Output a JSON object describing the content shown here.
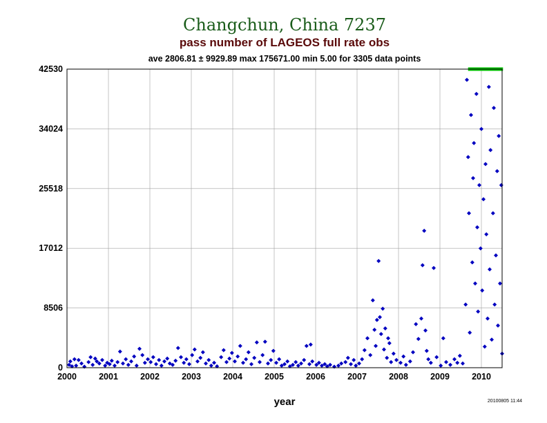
{
  "chart_data": {
    "type": "scatter",
    "title": "Changchun, China 7237",
    "subtitle": "pass number of LAGEOS full rate obs",
    "stats": "ave 2806.81 ± 9929.89 max 175671.00 min 5.00 for 3305 data points",
    "xlabel": "year",
    "ylabel": "",
    "stamp": "20100805 11:44",
    "xlim": [
      2000.0,
      2010.5
    ],
    "ylim": [
      0,
      42530
    ],
    "xticks": [
      2000,
      2001,
      2002,
      2003,
      2004,
      2005,
      2006,
      2007,
      2008,
      2009,
      2010
    ],
    "yticks": [
      0,
      8506,
      17012,
      25518,
      34024,
      42530
    ],
    "grid": true,
    "series": [
      {
        "color": "#0000c0",
        "marker": "diamond",
        "points": [
          [
            2000.05,
            400
          ],
          [
            2000.08,
            900
          ],
          [
            2000.12,
            200
          ],
          [
            2000.18,
            1200
          ],
          [
            2000.22,
            300
          ],
          [
            2000.28,
            1100
          ],
          [
            2000.35,
            600
          ],
          [
            2000.42,
            150
          ],
          [
            2000.52,
            800
          ],
          [
            2000.57,
            1500
          ],
          [
            2000.62,
            400
          ],
          [
            2000.68,
            1300
          ],
          [
            2000.72,
            900
          ],
          [
            2000.78,
            600
          ],
          [
            2000.85,
            1100
          ],
          [
            2000.92,
            300
          ],
          [
            2000.97,
            700
          ],
          [
            2001.03,
            500
          ],
          [
            2001.08,
            1000
          ],
          [
            2001.15,
            300
          ],
          [
            2001.22,
            800
          ],
          [
            2001.28,
            2300
          ],
          [
            2001.35,
            600
          ],
          [
            2001.42,
            1200
          ],
          [
            2001.48,
            400
          ],
          [
            2001.55,
            900
          ],
          [
            2001.62,
            1600
          ],
          [
            2001.68,
            300
          ],
          [
            2001.75,
            2700
          ],
          [
            2001.82,
            1800
          ],
          [
            2001.88,
            700
          ],
          [
            2001.95,
            1200
          ],
          [
            2002.02,
            800
          ],
          [
            2002.08,
            1500
          ],
          [
            2002.15,
            500
          ],
          [
            2002.22,
            1100
          ],
          [
            2002.28,
            300
          ],
          [
            2002.35,
            900
          ],
          [
            2002.42,
            1300
          ],
          [
            2002.48,
            600
          ],
          [
            2002.55,
            400
          ],
          [
            2002.62,
            1000
          ],
          [
            2002.68,
            2800
          ],
          [
            2002.75,
            1500
          ],
          [
            2002.82,
            700
          ],
          [
            2002.88,
            1200
          ],
          [
            2002.95,
            500
          ],
          [
            2003.02,
            1800
          ],
          [
            2003.08,
            2600
          ],
          [
            2003.15,
            900
          ],
          [
            2003.22,
            1400
          ],
          [
            2003.28,
            2200
          ],
          [
            2003.35,
            600
          ],
          [
            2003.42,
            1100
          ],
          [
            2003.48,
            300
          ],
          [
            2003.55,
            700
          ],
          [
            2003.62,
            200
          ],
          [
            2003.72,
            1500
          ],
          [
            2003.78,
            2500
          ],
          [
            2003.85,
            800
          ],
          [
            2003.92,
            1300
          ],
          [
            2003.98,
            2100
          ],
          [
            2004.05,
            900
          ],
          [
            2004.12,
            1600
          ],
          [
            2004.18,
            3100
          ],
          [
            2004.25,
            700
          ],
          [
            2004.32,
            1200
          ],
          [
            2004.38,
            2200
          ],
          [
            2004.45,
            500
          ],
          [
            2004.52,
            1400
          ],
          [
            2004.58,
            3600
          ],
          [
            2004.65,
            800
          ],
          [
            2004.72,
            1800
          ],
          [
            2004.78,
            3700
          ],
          [
            2004.85,
            600
          ],
          [
            2004.92,
            1100
          ],
          [
            2004.98,
            2400
          ],
          [
            2005.05,
            700
          ],
          [
            2005.12,
            1200
          ],
          [
            2005.18,
            300
          ],
          [
            2005.25,
            500
          ],
          [
            2005.32,
            900
          ],
          [
            2005.38,
            200
          ],
          [
            2005.45,
            400
          ],
          [
            2005.52,
            800
          ],
          [
            2005.58,
            300
          ],
          [
            2005.65,
            600
          ],
          [
            2005.72,
            1100
          ],
          [
            2005.78,
            3100
          ],
          [
            2005.85,
            500
          ],
          [
            2005.88,
            3300
          ],
          [
            2005.92,
            900
          ],
          [
            2006.02,
            400
          ],
          [
            2006.08,
            700
          ],
          [
            2006.15,
            300
          ],
          [
            2006.22,
            500
          ],
          [
            2006.28,
            200
          ],
          [
            2006.35,
            400
          ],
          [
            2006.45,
            150
          ],
          [
            2006.55,
            300
          ],
          [
            2006.62,
            600
          ],
          [
            2006.72,
            800
          ],
          [
            2006.78,
            1400
          ],
          [
            2006.85,
            500
          ],
          [
            2006.92,
            1100
          ],
          [
            2006.97,
            300
          ],
          [
            2007.05,
            600
          ],
          [
            2007.12,
            1200
          ],
          [
            2007.18,
            2500
          ],
          [
            2007.25,
            4200
          ],
          [
            2007.32,
            1800
          ],
          [
            2007.38,
            9600
          ],
          [
            2007.42,
            5400
          ],
          [
            2007.45,
            3100
          ],
          [
            2007.48,
            6800
          ],
          [
            2007.52,
            15200
          ],
          [
            2007.55,
            7200
          ],
          [
            2007.58,
            4800
          ],
          [
            2007.62,
            8400
          ],
          [
            2007.65,
            2600
          ],
          [
            2007.68,
            5600
          ],
          [
            2007.72,
            1400
          ],
          [
            2007.75,
            4200
          ],
          [
            2007.78,
            3500
          ],
          [
            2007.82,
            800
          ],
          [
            2007.88,
            2000
          ],
          [
            2007.95,
            1100
          ],
          [
            2008.05,
            700
          ],
          [
            2008.12,
            1600
          ],
          [
            2008.18,
            400
          ],
          [
            2008.28,
            900
          ],
          [
            2008.35,
            2200
          ],
          [
            2008.42,
            6200
          ],
          [
            2008.48,
            4100
          ],
          [
            2008.55,
            7000
          ],
          [
            2008.58,
            14600
          ],
          [
            2008.62,
            19500
          ],
          [
            2008.65,
            5300
          ],
          [
            2008.68,
            2400
          ],
          [
            2008.72,
            1200
          ],
          [
            2008.78,
            700
          ],
          [
            2008.85,
            14200
          ],
          [
            2008.92,
            1500
          ],
          [
            2009.02,
            300
          ],
          [
            2009.08,
            4200
          ],
          [
            2009.15,
            800
          ],
          [
            2009.25,
            400
          ],
          [
            2009.35,
            1200
          ],
          [
            2009.42,
            700
          ],
          [
            2009.48,
            1700
          ],
          [
            2009.55,
            600
          ],
          [
            2009.62,
            9000
          ],
          [
            2009.65,
            41000
          ],
          [
            2009.68,
            30000
          ],
          [
            2009.7,
            22000
          ],
          [
            2009.72,
            5000
          ],
          [
            2009.75,
            36000
          ],
          [
            2009.78,
            15000
          ],
          [
            2009.8,
            27000
          ],
          [
            2009.82,
            32000
          ],
          [
            2009.85,
            12000
          ],
          [
            2009.88,
            39000
          ],
          [
            2009.9,
            20000
          ],
          [
            2009.92,
            8000
          ],
          [
            2009.95,
            26000
          ],
          [
            2009.98,
            17000
          ],
          [
            2010.0,
            34000
          ],
          [
            2010.02,
            11000
          ],
          [
            2010.05,
            24000
          ],
          [
            2010.08,
            3000
          ],
          [
            2010.1,
            29000
          ],
          [
            2010.12,
            19000
          ],
          [
            2010.15,
            7000
          ],
          [
            2010.18,
            40000
          ],
          [
            2010.2,
            14000
          ],
          [
            2010.22,
            31000
          ],
          [
            2010.25,
            4000
          ],
          [
            2010.28,
            22000
          ],
          [
            2010.3,
            37000
          ],
          [
            2010.32,
            9000
          ],
          [
            2010.35,
            16000
          ],
          [
            2010.38,
            28000
          ],
          [
            2010.4,
            6000
          ],
          [
            2010.42,
            33000
          ],
          [
            2010.45,
            12000
          ],
          [
            2010.48,
            26000
          ],
          [
            2010.5,
            2000
          ]
        ]
      },
      {
        "color": "#00c000",
        "marker": "square",
        "points": [
          [
            2009.72,
            42530
          ],
          [
            2009.76,
            42530
          ],
          [
            2009.8,
            42530
          ],
          [
            2009.84,
            42530
          ],
          [
            2009.88,
            42530
          ],
          [
            2009.92,
            42530
          ],
          [
            2009.96,
            42530
          ],
          [
            2010.0,
            42530
          ],
          [
            2010.04,
            42530
          ],
          [
            2010.08,
            42530
          ],
          [
            2010.12,
            42530
          ],
          [
            2010.16,
            42530
          ],
          [
            2010.2,
            42530
          ],
          [
            2010.24,
            42530
          ],
          [
            2010.28,
            42530
          ],
          [
            2010.32,
            42530
          ],
          [
            2010.36,
            42530
          ],
          [
            2010.4,
            42530
          ],
          [
            2010.44,
            42530
          ],
          [
            2010.48,
            42530
          ]
        ]
      }
    ]
  }
}
